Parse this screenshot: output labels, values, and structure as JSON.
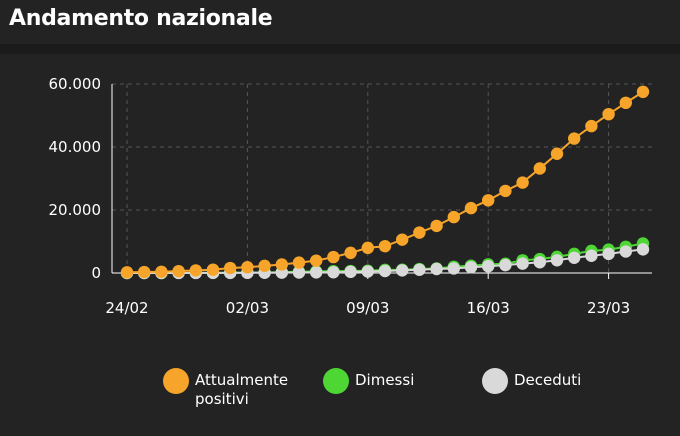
{
  "title": "Andamento nazionale",
  "colors": {
    "background": "#232323",
    "grid": "#555555",
    "attualmente": "#f7a52a",
    "dimessi": "#4ed635",
    "deceduti": "#d9d9d9"
  },
  "chart_data": {
    "type": "line",
    "title": "Andamento nazionale",
    "xlabel": "",
    "ylabel": "",
    "x_tick_labels": [
      "24/02",
      "02/03",
      "09/03",
      "16/03",
      "23/03"
    ],
    "y_tick_labels": [
      "0",
      "20.000",
      "40.000",
      "60.000"
    ],
    "y_ticks": [
      0,
      20000,
      40000,
      60000
    ],
    "ylim": [
      0,
      60000
    ],
    "grid": true,
    "legend_position": "bottom",
    "x": [
      "24/02",
      "25/02",
      "26/02",
      "27/02",
      "28/02",
      "29/02",
      "01/03",
      "02/03",
      "03/03",
      "04/03",
      "05/03",
      "06/03",
      "07/03",
      "08/03",
      "09/03",
      "10/03",
      "11/03",
      "12/03",
      "13/03",
      "14/03",
      "15/03",
      "16/03",
      "17/03",
      "18/03",
      "19/03",
      "20/03",
      "21/03",
      "22/03",
      "23/03",
      "24/03",
      "25/03"
    ],
    "series": [
      {
        "name": "Attualmente positivi",
        "color": "#f7a52a",
        "values": [
          221,
          311,
          385,
          588,
          821,
          1049,
          1577,
          1835,
          2263,
          2706,
          3296,
          3916,
          5061,
          6387,
          7985,
          8514,
          10590,
          12839,
          14955,
          17750,
          20603,
          23073,
          26062,
          28710,
          33190,
          37860,
          42681,
          46638,
          50418,
          54030,
          57521
        ]
      },
      {
        "name": "Dimessi",
        "color": "#4ed635",
        "values": [
          1,
          1,
          3,
          45,
          46,
          50,
          83,
          149,
          160,
          276,
          414,
          523,
          589,
          622,
          724,
          1004,
          1045,
          1258,
          1439,
          1966,
          2335,
          2749,
          2941,
          4025,
          4440,
          5129,
          6072,
          7024,
          7432,
          8326,
          9362
        ]
      },
      {
        "name": "Deceduti",
        "color": "#d9d9d9",
        "values": [
          7,
          10,
          12,
          17,
          21,
          29,
          34,
          52,
          79,
          107,
          148,
          197,
          233,
          366,
          463,
          631,
          827,
          1016,
          1266,
          1441,
          1809,
          2158,
          2503,
          2978,
          3405,
          4032,
          4825,
          5476,
          6077,
          6820,
          7503
        ]
      }
    ]
  },
  "legend": {
    "attualmente_line1": "Attualmente",
    "attualmente_line2": "positivi",
    "dimessi": "Dimessi",
    "deceduti": "Deceduti"
  }
}
